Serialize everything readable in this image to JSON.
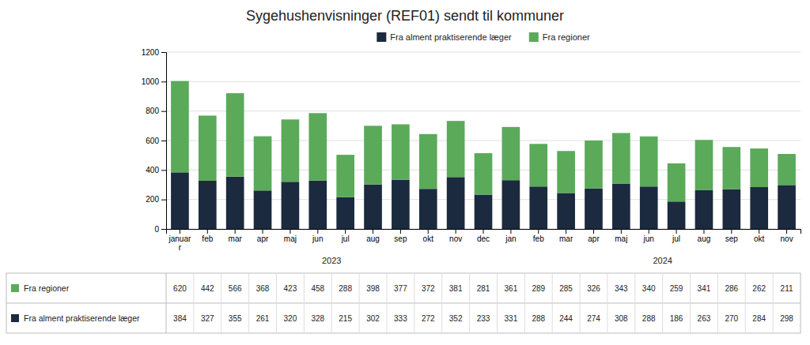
{
  "chart_data": {
    "type": "bar",
    "title": "Sygehushenvisninger (REF01) sendt til kommuner",
    "categories": [
      "januar\nr",
      "feb",
      "mar",
      "apr",
      "maj",
      "jun",
      "jul",
      "aug",
      "sep",
      "okt",
      "nov",
      "dec",
      "jan",
      "feb",
      "mar",
      "apr",
      "maj",
      "jun",
      "jul",
      "aug",
      "sep",
      "okt",
      "nov"
    ],
    "series": [
      {
        "name": "Fra alment praktiserende læger",
        "color": "#1b2a3e",
        "values": [
          384,
          327,
          355,
          261,
          320,
          328,
          215,
          302,
          333,
          272,
          352,
          233,
          331,
          288,
          244,
          274,
          308,
          288,
          186,
          263,
          270,
          284,
          298
        ]
      },
      {
        "name": "Fra regioner",
        "color": "#5aaa5a",
        "values": [
          620,
          442,
          566,
          368,
          423,
          458,
          288,
          398,
          377,
          372,
          381,
          281,
          361,
          289,
          285,
          326,
          343,
          340,
          259,
          341,
          286,
          262,
          211
        ]
      }
    ],
    "annotations": [
      {
        "text": "2023",
        "x": 5.5
      },
      {
        "text": "2024",
        "x": 17.5
      }
    ],
    "stacked": true,
    "ylim": [
      0,
      1200
    ],
    "yticks": [
      0,
      200,
      400,
      600,
      800,
      1000,
      1200
    ],
    "grid": true,
    "legend": "top"
  }
}
